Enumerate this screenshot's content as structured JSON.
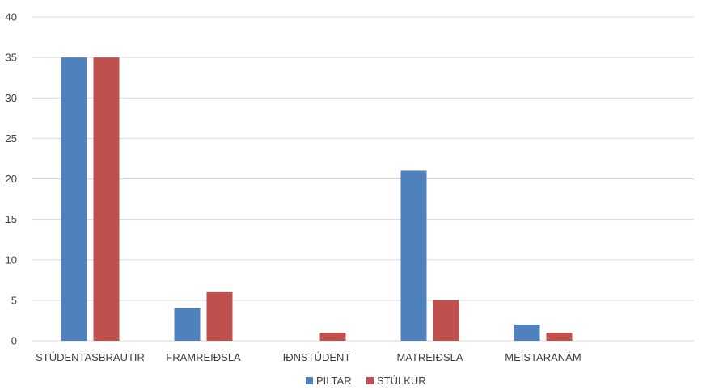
{
  "chart_data": {
    "type": "bar",
    "categories": [
      "STÚDENTASBRAUTIR",
      "FRAMREIÐSLA",
      "IÐNSTÚDENT",
      "MATREIÐSLA",
      "MEISTARANÁM"
    ],
    "series": [
      {
        "name": "PILTAR",
        "values": [
          35,
          4,
          0,
          21,
          2
        ],
        "color": "#4F81BD"
      },
      {
        "name": "STÚLKUR",
        "values": [
          35,
          6,
          1,
          5,
          1
        ],
        "color": "#C0504D"
      }
    ],
    "ylim": [
      0,
      40
    ],
    "yticks": [
      0,
      5,
      10,
      15,
      20,
      25,
      30,
      35,
      40
    ],
    "grid": true,
    "legend": "bottom",
    "gridline_color": "#D9D9D9"
  }
}
